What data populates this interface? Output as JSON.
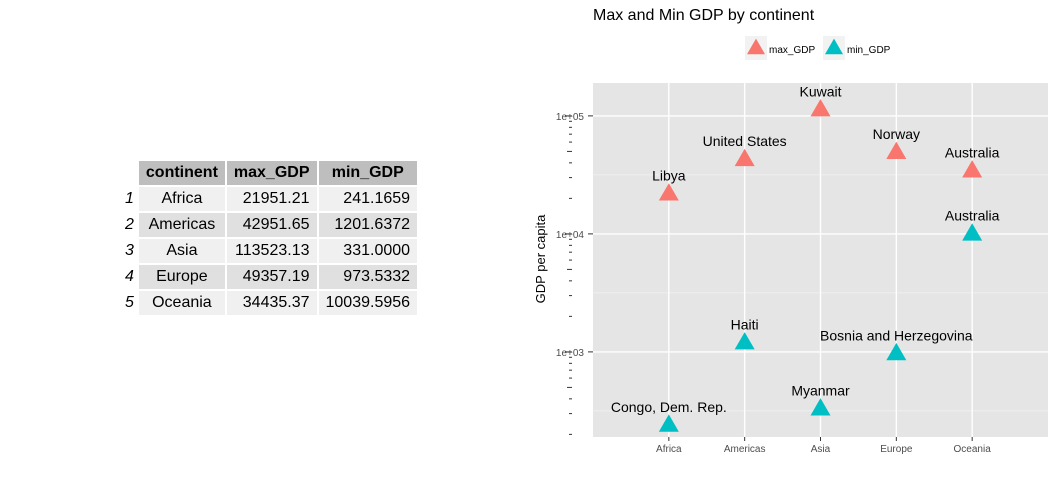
{
  "table": {
    "columns": [
      "continent",
      "max_GDP",
      "min_GDP"
    ],
    "rows": [
      {
        "rowname": "1",
        "continent": "Africa",
        "max_GDP": "21951.21",
        "min_GDP": "241.1659"
      },
      {
        "rowname": "2",
        "continent": "Americas",
        "max_GDP": "42951.65",
        "min_GDP": "1201.6372"
      },
      {
        "rowname": "3",
        "continent": "Asia",
        "max_GDP": "113523.13",
        "min_GDP": "331.0000"
      },
      {
        "rowname": "4",
        "continent": "Europe",
        "max_GDP": "49357.19",
        "min_GDP": "973.5332"
      },
      {
        "rowname": "5",
        "continent": "Oceania",
        "max_GDP": "34435.37",
        "min_GDP": "10039.5956"
      }
    ]
  },
  "chart_data": {
    "type": "scatter",
    "title": "Max and Min GDP by continent",
    "xlabel": "",
    "ylabel": "GDP per capita",
    "y_scale": "log10",
    "ylim": [
      190,
      190000
    ],
    "categories": [
      "Africa",
      "Americas",
      "Asia",
      "Europe",
      "Oceania"
    ],
    "y_ticks": [
      1000,
      10000,
      100000
    ],
    "y_tick_labels": [
      "1e+03",
      "1e+04",
      "1e+05"
    ],
    "grid": true,
    "legend_position": "top",
    "series": [
      {
        "name": "max_GDP",
        "color": "#f8766d",
        "values": [
          21951.21,
          42951.65,
          113523.13,
          49357.19,
          34435.37
        ],
        "labels": [
          "Libya",
          "United States",
          "Kuwait",
          "Norway",
          "Australia"
        ]
      },
      {
        "name": "min_GDP",
        "color": "#00bfc4",
        "values": [
          241.1659,
          1201.6372,
          331.0,
          973.5332,
          10039.5956
        ],
        "labels": [
          "Congo, Dem. Rep.",
          "Haiti",
          "Myanmar",
          "Bosnia and Herzegovina",
          "Australia"
        ]
      }
    ]
  }
}
